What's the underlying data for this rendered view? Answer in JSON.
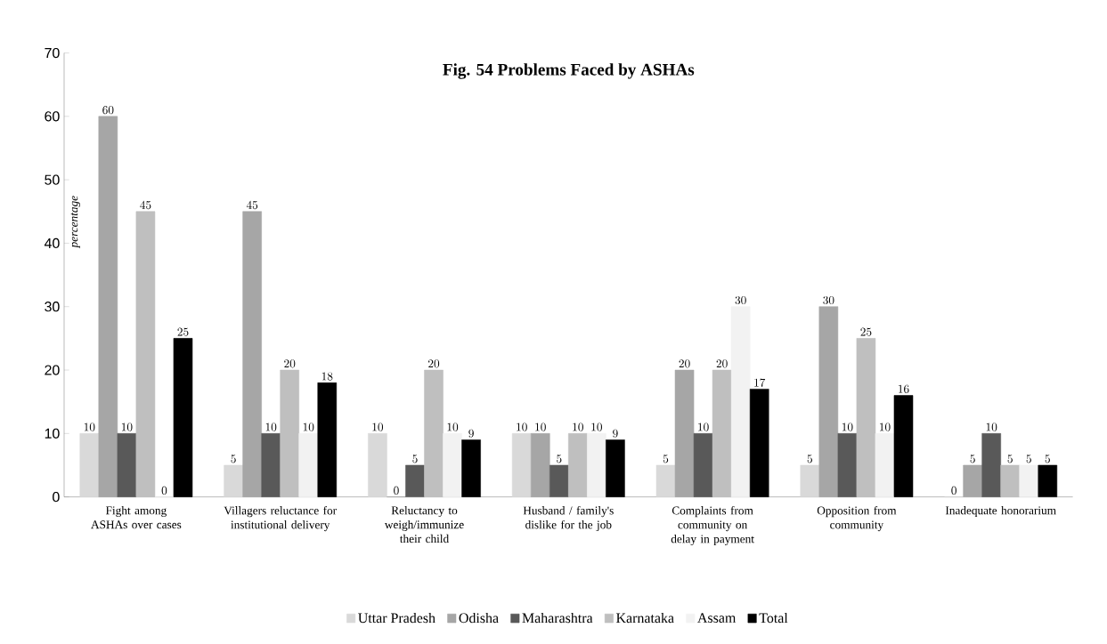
{
  "chart_data": {
    "type": "bar",
    "title": "Fig. 54 Problems Faced by ASHAs",
    "ylabel": "percentage",
    "categories": [
      "Fight among ASHAs over cases",
      "Villagers reluctance for institutional delivery",
      "Reluctancy to weigh/immunize their child",
      "Husband / family's dislike for the job",
      "Complaints from community on delay in payment",
      "Opposition from community",
      "Inadequate honorarium"
    ],
    "series": [
      {
        "name": "Uttar Pradesh",
        "color": "#d9d9d9",
        "values": [
          10,
          5,
          10,
          10,
          5,
          5,
          0
        ]
      },
      {
        "name": "Odisha",
        "color": "#a6a6a6",
        "values": [
          60,
          45,
          0,
          10,
          20,
          30,
          5
        ]
      },
      {
        "name": "Maharashtra",
        "color": "#595959",
        "values": [
          10,
          10,
          5,
          5,
          10,
          10,
          10
        ]
      },
      {
        "name": "Karnataka",
        "color": "#bfbfbf",
        "values": [
          45,
          20,
          20,
          10,
          20,
          25,
          5
        ]
      },
      {
        "name": "Assam",
        "color": "#f2f2f2",
        "values": [
          0,
          10,
          10,
          10,
          30,
          10,
          5
        ]
      },
      {
        "name": "Total",
        "color": "#000000",
        "values": [
          25,
          18,
          9,
          9,
          17,
          16,
          5
        ]
      }
    ],
    "ylim": [
      0,
      70
    ],
    "yticks": [
      0,
      10,
      20,
      30,
      40,
      50,
      60,
      70
    ],
    "data_labels": true,
    "legend": "bottom",
    "grid": false
  }
}
